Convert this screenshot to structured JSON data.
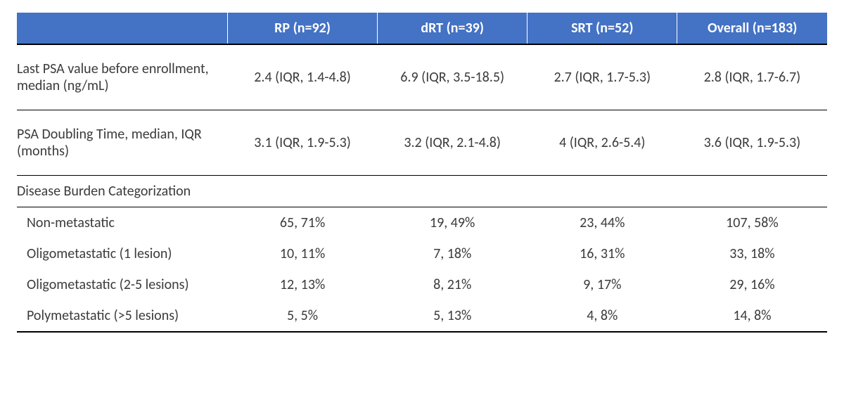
{
  "table": {
    "header_bg": "#4472c4",
    "header_fg": "#ffffff",
    "font_family": "Calibri",
    "font_size_pt": 15,
    "columns": [
      {
        "label": ""
      },
      {
        "label": "RP (n=92)"
      },
      {
        "label": "dRT (n=39)"
      },
      {
        "label": "SRT (n=52)"
      },
      {
        "label": "Overall (n=183)"
      }
    ],
    "psa_value": {
      "label": "Last PSA value before enrollment, median (ng/mL)",
      "rp": "2.4 (IQR, 1.4-4.8)",
      "drt": "6.9 (IQR, 3.5-18.5)",
      "srt": "2.7 (IQR, 1.7-5.3)",
      "overall": "2.8 (IQR, 1.7-6.7)"
    },
    "psa_doubling": {
      "label": "PSA Doubling Time, median, IQR (months)",
      "rp": "3.1 (IQR, 1.9-5.3)",
      "drt": "3.2 (IQR, 2.1-4.8)",
      "srt": "4 (IQR, 2.6-5.4)",
      "overall": "3.6 (IQR, 1.9-5.3)"
    },
    "burden_header": "Disease Burden Categorization",
    "burden": [
      {
        "label": "Non-metastatic",
        "rp": "65, 71%",
        "drt": "19, 49%",
        "srt": "23, 44%",
        "overall": "107, 58%"
      },
      {
        "label": "Oligometastatic (1 lesion)",
        "rp": "10, 11%",
        "drt": "7, 18%",
        "srt": "16, 31%",
        "overall": "33, 18%"
      },
      {
        "label": "Oligometastatic (2-5 lesions)",
        "rp": "12, 13%",
        "drt": "8, 21%",
        "srt": "9, 17%",
        "overall": "29, 16%"
      },
      {
        "label": "Polymetastatic (>5 lesions)",
        "rp": "5, 5%",
        "drt": "5, 13%",
        "srt": "4, 8%",
        "overall": "14, 8%"
      }
    ]
  }
}
